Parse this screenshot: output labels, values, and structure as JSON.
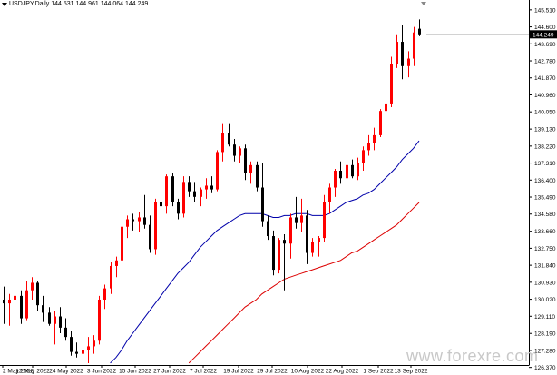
{
  "header": {
    "symbol_label": "USDJPY,Daily",
    "ohlc_label": "144.531 144.961 144.064 144.249"
  },
  "watermark": "www.forexre.com",
  "current_price_label": "144.249",
  "colors": {
    "bull": "#ff0000",
    "bear": "#000000",
    "ma_fast": "#0000aa",
    "ma_slow": "#dd0000",
    "price_tag_bg": "#000000"
  },
  "chart_data": {
    "type": "candlestick",
    "ylim": [
      126.5,
      145.6
    ],
    "y_ticks": [
      "145.510",
      "144.600",
      "143.690",
      "142.780",
      "141.870",
      "140.960",
      "140.050",
      "139.130",
      "138.220",
      "137.310",
      "136.400",
      "135.490",
      "134.580",
      "133.660",
      "132.750",
      "131.840",
      "130.930",
      "130.020",
      "129.110",
      "128.190",
      "127.280",
      "126.370"
    ],
    "x_ticks": [
      "2 May 2022",
      "12 May 2022",
      "24 May 2022",
      "3 Jun 2022",
      "15 Jun 2022",
      "27 Jun 2022",
      "7 Jul 2022",
      "19 Jul 2022",
      "29 Jul 2022",
      "10 Aug 2022",
      "22 Aug 2022",
      "1 Sep 2022",
      "13 Sep 2022"
    ],
    "candles": [
      [
        130.0,
        130.7,
        128.7,
        129.8
      ],
      [
        129.8,
        130.3,
        128.6,
        130.0
      ],
      [
        130.0,
        130.6,
        129.3,
        130.2
      ],
      [
        130.2,
        130.5,
        128.7,
        129.0
      ],
      [
        129.0,
        131.0,
        128.9,
        130.5
      ],
      [
        130.5,
        131.2,
        130.0,
        130.9
      ],
      [
        130.9,
        131.0,
        129.4,
        129.7
      ],
      [
        129.7,
        130.2,
        128.8,
        129.3
      ],
      [
        129.3,
        129.6,
        128.6,
        128.7
      ],
      [
        128.7,
        129.4,
        127.6,
        129.1
      ],
      [
        129.1,
        129.6,
        128.2,
        128.5
      ],
      [
        128.5,
        129.0,
        127.8,
        128.0
      ],
      [
        128.0,
        128.3,
        127.0,
        127.2
      ],
      [
        127.2,
        127.7,
        126.9,
        127.1
      ],
      [
        127.1,
        127.6,
        126.9,
        127.3
      ],
      [
        127.3,
        128.0,
        126.6,
        127.5
      ],
      [
        127.5,
        128.1,
        127.1,
        127.8
      ],
      [
        127.8,
        130.2,
        127.6,
        130.0
      ],
      [
        130.0,
        130.8,
        129.5,
        130.6
      ],
      [
        130.6,
        132.0,
        130.3,
        131.8
      ],
      [
        131.8,
        132.3,
        131.2,
        132.1
      ],
      [
        132.1,
        134.0,
        131.9,
        133.9
      ],
      [
        133.9,
        134.5,
        133.3,
        134.3
      ],
      [
        134.3,
        134.6,
        133.7,
        134.2
      ],
      [
        134.2,
        134.7,
        133.6,
        134.4
      ],
      [
        134.4,
        135.6,
        133.8,
        134.0
      ],
      [
        134.0,
        134.5,
        132.5,
        132.7
      ],
      [
        132.7,
        135.4,
        132.4,
        135.2
      ],
      [
        135.2,
        135.6,
        134.2,
        135.0
      ],
      [
        135.0,
        136.7,
        134.6,
        136.6
      ],
      [
        136.6,
        136.8,
        135.0,
        135.2
      ],
      [
        135.2,
        135.4,
        134.3,
        134.6
      ],
      [
        134.6,
        136.6,
        134.4,
        136.3
      ],
      [
        136.3,
        136.6,
        135.5,
        135.8
      ],
      [
        135.8,
        136.3,
        135.2,
        135.5
      ],
      [
        135.5,
        136.0,
        135.0,
        135.9
      ],
      [
        135.9,
        136.5,
        135.4,
        136.1
      ],
      [
        136.1,
        136.6,
        135.7,
        135.9
      ],
      [
        135.9,
        138.0,
        135.8,
        137.9
      ],
      [
        137.9,
        139.4,
        137.4,
        138.9
      ],
      [
        138.9,
        139.4,
        138.2,
        138.3
      ],
      [
        138.3,
        138.6,
        137.4,
        137.7
      ],
      [
        137.7,
        138.2,
        137.3,
        138.1
      ],
      [
        138.1,
        138.3,
        136.4,
        136.8
      ],
      [
        136.8,
        137.4,
        136.2,
        137.2
      ],
      [
        137.2,
        137.4,
        135.8,
        136.0
      ],
      [
        136.0,
        137.3,
        133.9,
        134.2
      ],
      [
        134.2,
        134.5,
        133.2,
        133.4
      ],
      [
        133.4,
        133.7,
        131.3,
        131.6
      ],
      [
        131.6,
        133.3,
        131.4,
        133.2
      ],
      [
        133.2,
        133.5,
        130.5,
        133.0
      ],
      [
        133.0,
        134.6,
        132.2,
        134.4
      ],
      [
        134.4,
        135.5,
        133.8,
        134.1
      ],
      [
        134.1,
        135.4,
        133.6,
        134.5
      ],
      [
        134.5,
        134.8,
        131.9,
        132.5
      ],
      [
        132.5,
        133.3,
        132.3,
        133.1
      ],
      [
        133.1,
        133.4,
        132.3,
        133.3
      ],
      [
        133.3,
        135.6,
        133.1,
        135.2
      ],
      [
        135.2,
        136.2,
        134.6,
        136.0
      ],
      [
        136.0,
        137.0,
        135.5,
        136.9
      ],
      [
        136.9,
        137.4,
        136.2,
        136.5
      ],
      [
        136.5,
        137.4,
        136.3,
        137.2
      ],
      [
        137.2,
        137.5,
        136.5,
        136.6
      ],
      [
        136.6,
        137.6,
        136.4,
        137.3
      ],
      [
        137.3,
        138.2,
        136.9,
        138.0
      ],
      [
        138.0,
        138.8,
        137.7,
        138.4
      ],
      [
        138.4,
        139.2,
        138.0,
        138.8
      ],
      [
        138.8,
        140.2,
        138.7,
        140.1
      ],
      [
        140.1,
        140.8,
        139.6,
        140.5
      ],
      [
        140.5,
        143.0,
        140.3,
        142.6
      ],
      [
        142.6,
        144.2,
        142.4,
        143.8
      ],
      [
        143.8,
        144.7,
        141.8,
        142.5
      ],
      [
        142.5,
        143.3,
        141.9,
        142.9
      ],
      [
        142.9,
        144.6,
        142.5,
        144.3
      ],
      [
        144.5,
        145.0,
        144.1,
        144.2
      ]
    ],
    "series": [
      {
        "values": [
          null,
          null,
          null,
          null,
          null,
          null,
          null,
          null,
          null,
          null,
          null,
          null,
          null,
          null,
          null,
          null,
          null,
          null,
          null,
          126.6,
          126.9,
          127.3,
          127.8,
          128.2,
          128.6,
          129.0,
          129.4,
          129.8,
          130.2,
          130.6,
          131.0,
          131.4,
          131.7,
          132.0,
          132.4,
          132.8,
          133.1,
          133.4,
          133.7,
          133.9,
          134.1,
          134.3,
          134.5,
          134.6,
          134.6,
          134.6,
          134.6,
          134.5,
          134.4,
          134.4,
          134.5,
          134.5,
          134.6,
          134.6,
          134.6,
          134.5,
          134.5,
          134.5,
          134.6,
          134.8,
          135.0,
          135.2,
          135.3,
          135.4,
          135.6,
          135.7,
          135.9,
          136.2,
          136.5,
          136.8,
          137.1,
          137.5,
          137.8,
          138.1,
          138.5
        ]
      },
      {
        "values": [
          null,
          null,
          null,
          null,
          null,
          null,
          null,
          null,
          null,
          null,
          null,
          null,
          null,
          null,
          null,
          null,
          null,
          null,
          null,
          null,
          null,
          null,
          null,
          null,
          null,
          null,
          null,
          null,
          null,
          null,
          null,
          null,
          null,
          126.6,
          126.9,
          127.2,
          127.5,
          127.8,
          128.1,
          128.4,
          128.7,
          129.0,
          129.3,
          129.6,
          129.8,
          130.0,
          130.3,
          130.5,
          130.7,
          130.9,
          131.1,
          131.2,
          131.3,
          131.4,
          131.5,
          131.6,
          131.7,
          131.8,
          131.9,
          132.0,
          132.1,
          132.3,
          132.5,
          132.6,
          132.8,
          133.0,
          133.2,
          133.4,
          133.6,
          133.8,
          134.0,
          134.3,
          134.6,
          134.9,
          135.2
        ]
      }
    ]
  }
}
